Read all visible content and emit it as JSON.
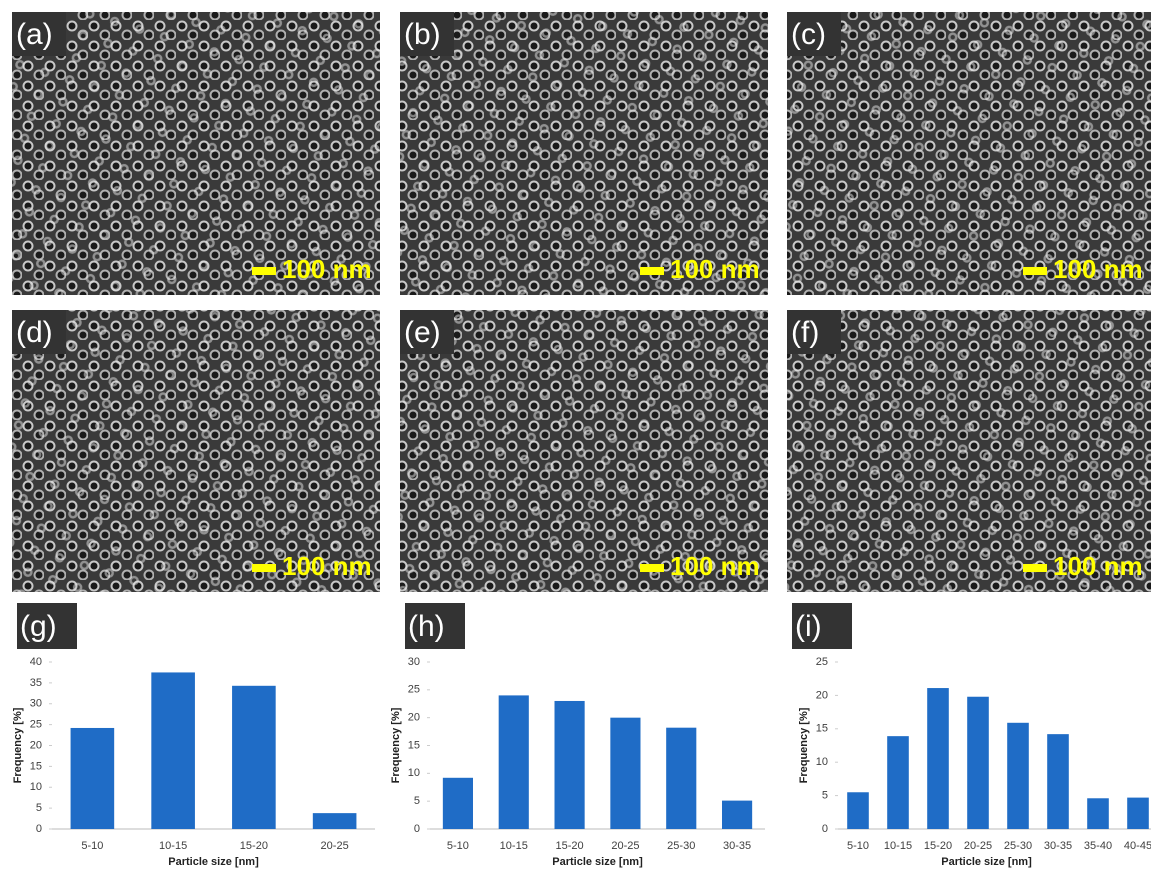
{
  "images": [
    {
      "label": "(a)",
      "scale_bar": "100 nm"
    },
    {
      "label": "(b)",
      "scale_bar": "100 nm"
    },
    {
      "label": "(c)",
      "scale_bar": "100 nm"
    },
    {
      "label": "(d)",
      "scale_bar": "100 nm"
    },
    {
      "label": "(e)",
      "scale_bar": "100 nm"
    },
    {
      "label": "(f)",
      "scale_bar": "100 nm"
    }
  ],
  "chart_data": [
    {
      "type": "bar",
      "label": "(g)",
      "x_label": "Particle size [nm]",
      "y_label": "Frequency [%]",
      "color": "#1f6cc6",
      "categories": [
        "5-10",
        "10-15",
        "15-20",
        "20-25"
      ],
      "values": [
        24.2,
        37.5,
        34.3,
        3.8
      ],
      "ylim": [
        0,
        40
      ],
      "yticks": [
        0,
        5,
        10,
        15,
        20,
        25,
        30,
        35,
        40
      ]
    },
    {
      "type": "bar",
      "label": "(h)",
      "x_label": "Particle size [nm]",
      "y_label": "Frequency [%]",
      "color": "#1f6cc6",
      "categories": [
        "5-10",
        "10-15",
        "15-20",
        "20-25",
        "25-30",
        "30-35"
      ],
      "values": [
        9.2,
        24,
        23,
        20,
        18.2,
        5.1
      ],
      "ylim": [
        0,
        30
      ],
      "yticks": [
        0,
        5,
        10,
        15,
        20,
        25,
        30
      ]
    },
    {
      "type": "bar",
      "label": "(i)",
      "x_label": "Particle size [nm]",
      "y_label": "Frequency [%]",
      "color": "#1f6cc6",
      "categories": [
        "5-10",
        "10-15",
        "15-20",
        "20-25",
        "25-30",
        "30-35",
        "35-40",
        "40-45"
      ],
      "values": [
        5.5,
        13.9,
        21.1,
        19.8,
        15.9,
        14.2,
        4.6,
        4.7
      ],
      "ylim": [
        0,
        25
      ],
      "yticks": [
        0,
        5,
        10,
        15,
        20,
        25
      ]
    }
  ]
}
